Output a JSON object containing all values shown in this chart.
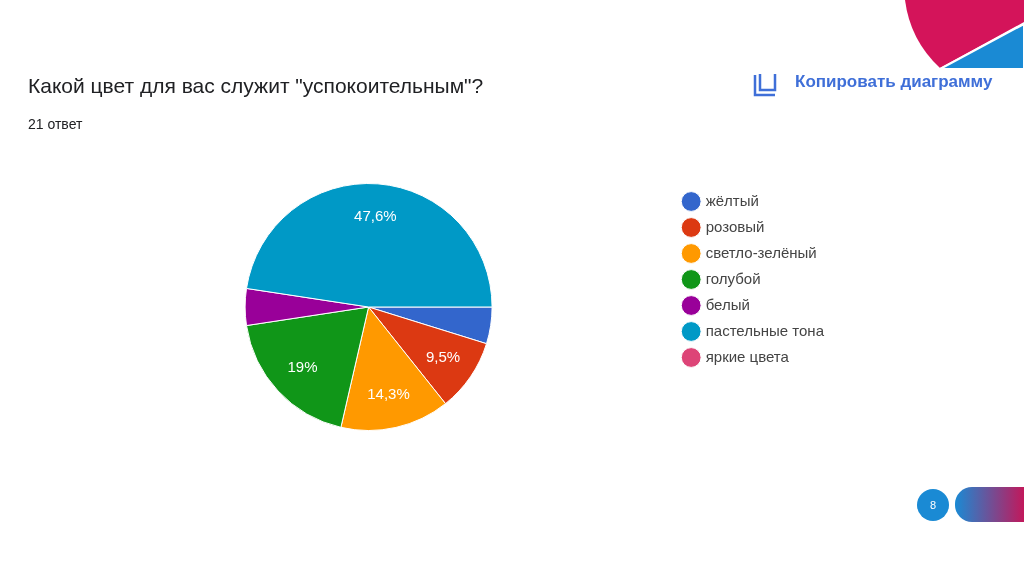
{
  "chart_data": {
    "type": "pie",
    "title": "Какой цвет для вас служит \"успокоительным\"?",
    "subtitle": "21 ответ",
    "categories": [
      "жёлтый",
      "розовый",
      "светло-зелёный",
      "голубой",
      "белый",
      "пастельные тона",
      "яркие цвета"
    ],
    "values": [
      4.8,
      9.5,
      14.3,
      19,
      4.8,
      47.6,
      0
    ],
    "colors": [
      "#3366cc",
      "#dc3912",
      "#ff9900",
      "#109618",
      "#990099",
      "#0099c6",
      "#dd4477"
    ],
    "value_labels": [
      null,
      "9,5%",
      "14,3%",
      "19%",
      null,
      "47,6%",
      null
    ],
    "legend": "right",
    "annotations": [
      "Копировать диаграмму",
      "8"
    ]
  }
}
